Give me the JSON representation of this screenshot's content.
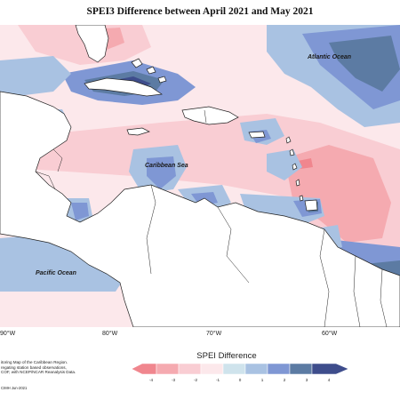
{
  "map": {
    "title": "SPEI3 Difference between April 2021 and May 2021",
    "ocean_labels": {
      "atlantic": "Atlantic Ocean",
      "caribbean": "Caribbean Sea",
      "pacific": "Pacific Ocean"
    },
    "longitude_ticks": [
      "90°W",
      "80°W",
      "70°W",
      "60°W"
    ],
    "note_lines": [
      "itoring Map of the Caribbean Region.",
      "regating station based observations,",
      "COF, with NCEP/NCAR Reanalysis Data."
    ],
    "footer": "CIMH Jun-2021",
    "colors": {
      "land": "#ffffff",
      "coast": "#222222",
      "neg4": "#f0868e",
      "neg3": "#f5aab0",
      "neg2": "#f9cdd3",
      "neg1": "#fce8eb",
      "pos0": "#cfe3ec",
      "pos1": "#a9c2e2",
      "pos2": "#7f97d4",
      "pos3": "#5c7ba3",
      "pos4": "#3e4d8c"
    }
  },
  "legend": {
    "title": "SPEI Difference",
    "tick_labels": [
      "-4",
      "-3",
      "-2",
      "-1",
      "0",
      "1",
      "2",
      "3",
      "4"
    ]
  }
}
